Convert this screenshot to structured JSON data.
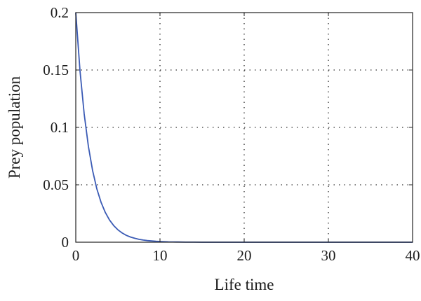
{
  "chart_data": {
    "type": "line",
    "title": "",
    "xlabel": "Life time",
    "ylabel": "Prey population",
    "xlim": [
      0,
      40
    ],
    "ylim": [
      0,
      0.2
    ],
    "x_ticks": [
      0,
      10,
      20,
      30,
      40
    ],
    "x_tick_labels": [
      "0",
      "10",
      "20",
      "30",
      "40"
    ],
    "y_ticks": [
      0,
      0.05,
      0.1,
      0.15,
      0.2
    ],
    "y_tick_labels": [
      "0",
      "0.05",
      "0.1",
      "0.15",
      "0.2"
    ],
    "grid": true,
    "grid_style": "dotted",
    "legend": "none",
    "series": [
      {
        "color": "#3b5bb5",
        "x": [
          0,
          0.5,
          1,
          1.5,
          2,
          2.5,
          3,
          3.5,
          4,
          4.5,
          5,
          5.5,
          6,
          6.5,
          7,
          7.5,
          8,
          8.5,
          9,
          9.5,
          10,
          11,
          12,
          13,
          14,
          15,
          16,
          18,
          20,
          25,
          30,
          35,
          40
        ],
        "y": [
          0.2,
          0.1494,
          0.1116,
          0.0834,
          0.0623,
          0.0465,
          0.0348,
          0.026,
          0.0194,
          0.0145,
          0.0108,
          0.0081,
          0.006,
          0.0045,
          0.0034,
          0.0025,
          0.0019,
          0.0014,
          0.0011,
          0.0008,
          0.0006,
          0.0003,
          0.0002,
          0.0001,
          0.0001,
          0.0,
          0.0,
          0.0,
          0.0,
          0.0,
          0.0,
          0.0,
          0.0
        ]
      }
    ]
  }
}
